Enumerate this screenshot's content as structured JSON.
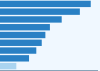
{
  "chart_data": {
    "type": "bar",
    "orientation": "horizontal",
    "categories": [
      null,
      null,
      null,
      null,
      null,
      null,
      null,
      null,
      null
    ],
    "values": [
      100,
      88,
      68,
      55,
      50,
      46,
      40,
      32,
      18
    ],
    "colors": [
      "#2980c4",
      "#2980c4",
      "#2980c4",
      "#2980c4",
      "#2980c4",
      "#2980c4",
      "#2980c4",
      "#2980c4",
      "#aad4f0"
    ],
    "xlim": [
      0,
      108
    ],
    "tick_labels": false,
    "grid": false
  }
}
